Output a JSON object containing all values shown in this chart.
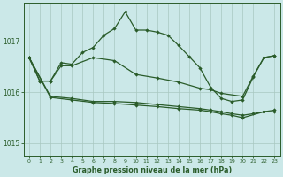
{
  "title": "Graphe pression niveau de la mer (hPa)",
  "bg": "#cbe8e8",
  "grid_color": "#a8c8c0",
  "lc": "#2a5c2a",
  "xlim": [
    -0.5,
    23.5
  ],
  "ylim": [
    1014.75,
    1017.75
  ],
  "yticks": [
    1015,
    1016,
    1017
  ],
  "xticks": [
    0,
    1,
    2,
    3,
    4,
    5,
    6,
    7,
    8,
    9,
    10,
    11,
    12,
    13,
    14,
    15,
    16,
    17,
    18,
    19,
    20,
    21,
    22,
    23
  ],
  "curve1_x": [
    0,
    1,
    2,
    3,
    4,
    5,
    6,
    7,
    8,
    9,
    10,
    11,
    12,
    13,
    14,
    15,
    16,
    17,
    18,
    19,
    20,
    21,
    22,
    23
  ],
  "curve1_y": [
    1016.68,
    1016.22,
    1016.22,
    1016.58,
    1016.55,
    1016.78,
    1016.88,
    1017.12,
    1017.25,
    1017.58,
    1017.22,
    1017.22,
    1017.18,
    1017.12,
    1016.92,
    1016.7,
    1016.48,
    1016.1,
    1015.88,
    1015.82,
    1015.85,
    1016.3,
    1016.68,
    1016.72
  ],
  "curve2_x": [
    0,
    1,
    2,
    3,
    4,
    6,
    8,
    10,
    12,
    14,
    16,
    17,
    18,
    20,
    21,
    22,
    23
  ],
  "curve2_y": [
    1016.68,
    1016.22,
    1016.22,
    1016.52,
    1016.52,
    1016.68,
    1016.62,
    1016.35,
    1016.28,
    1016.2,
    1016.08,
    1016.05,
    1015.98,
    1015.92,
    1016.32,
    1016.68,
    1016.72
  ],
  "curve3_x": [
    0,
    2,
    4,
    6,
    8,
    10,
    12,
    14,
    16,
    17,
    18,
    19,
    20,
    21,
    22,
    23
  ],
  "curve3_y": [
    1016.68,
    1015.92,
    1015.88,
    1015.82,
    1015.82,
    1015.8,
    1015.76,
    1015.72,
    1015.68,
    1015.65,
    1015.62,
    1015.58,
    1015.55,
    1015.58,
    1015.62,
    1015.65
  ],
  "curve4_x": [
    0,
    2,
    4,
    6,
    8,
    10,
    12,
    14,
    16,
    17,
    18,
    19,
    20,
    22,
    23
  ],
  "curve4_y": [
    1016.68,
    1015.9,
    1015.85,
    1015.8,
    1015.78,
    1015.75,
    1015.72,
    1015.68,
    1015.65,
    1015.62,
    1015.58,
    1015.55,
    1015.5,
    1015.62,
    1015.62
  ]
}
